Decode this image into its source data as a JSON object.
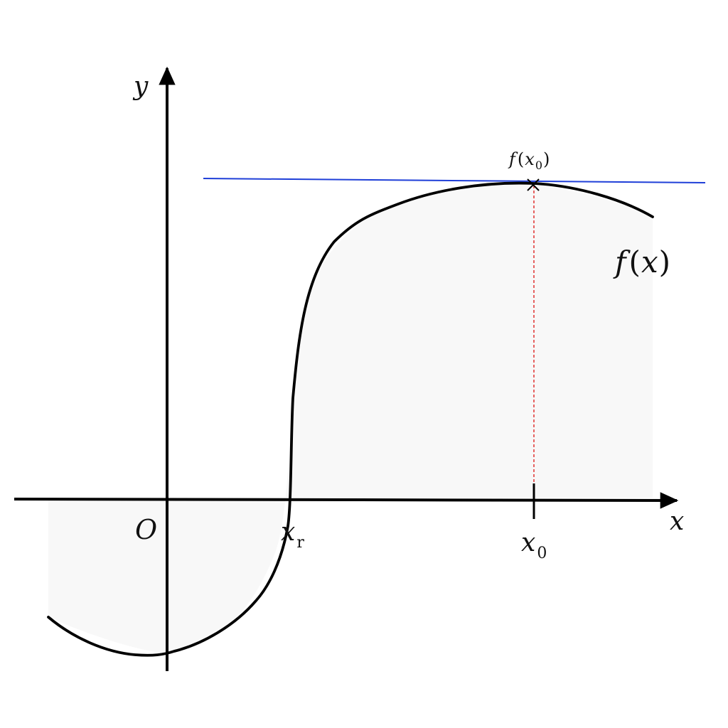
{
  "diagram": {
    "labels": {
      "y_axis": "y",
      "x_axis": "x",
      "origin": "O",
      "root": {
        "main": "x",
        "sub": "r"
      },
      "x0": {
        "main": "x",
        "sub": "0"
      },
      "curve": {
        "f": "f",
        "open": "(",
        "x": "x",
        "close": ")"
      },
      "point": {
        "f": "f",
        "open": "(",
        "x": "x",
        "sub": "0",
        "close": ")"
      }
    },
    "colors": {
      "axis": "#000000",
      "curve": "#000000",
      "horizontal_line": "#1f3fd8",
      "dashed_line": "#e0302f",
      "shading": "#f7f7f7",
      "text": "#111111"
    },
    "marker": "x-mark"
  }
}
